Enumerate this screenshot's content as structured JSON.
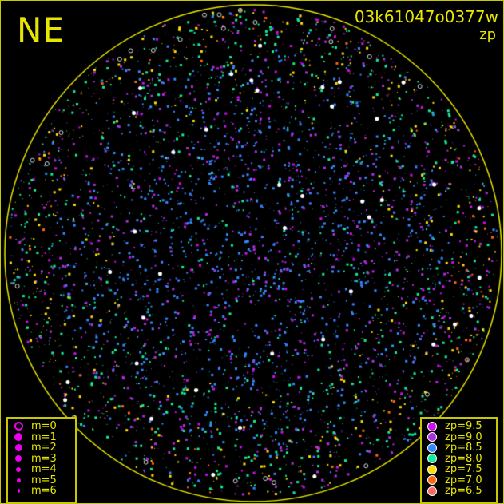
{
  "header": {
    "direction": "NE",
    "camera_id": "03k61047o0377w",
    "mode": "zp"
  },
  "sky": {
    "circle_color": "#e6e600",
    "background": "#000000"
  },
  "magnitude_legend": [
    {
      "label": "m=0",
      "style": "ring"
    },
    {
      "label": "m=1"
    },
    {
      "label": "m=2"
    },
    {
      "label": "m=3"
    },
    {
      "label": "m=4"
    },
    {
      "label": "m=5"
    },
    {
      "label": "m=6"
    }
  ],
  "magnitude_legend_color": "#ee00ee",
  "zp_legend": [
    {
      "label": "zp=9.5",
      "color": "#cc11ee"
    },
    {
      "label": "zp=9.0",
      "color": "#aa33dd"
    },
    {
      "label": "zp=8.5",
      "color": "#3388ff"
    },
    {
      "label": "zp=8.0",
      "color": "#11ee99"
    },
    {
      "label": "zp=7.5",
      "color": "#ffdd00"
    },
    {
      "label": "zp=7.0",
      "color": "#ff6611"
    },
    {
      "label": "zp=6.5",
      "color": "#ff6666"
    }
  ]
}
